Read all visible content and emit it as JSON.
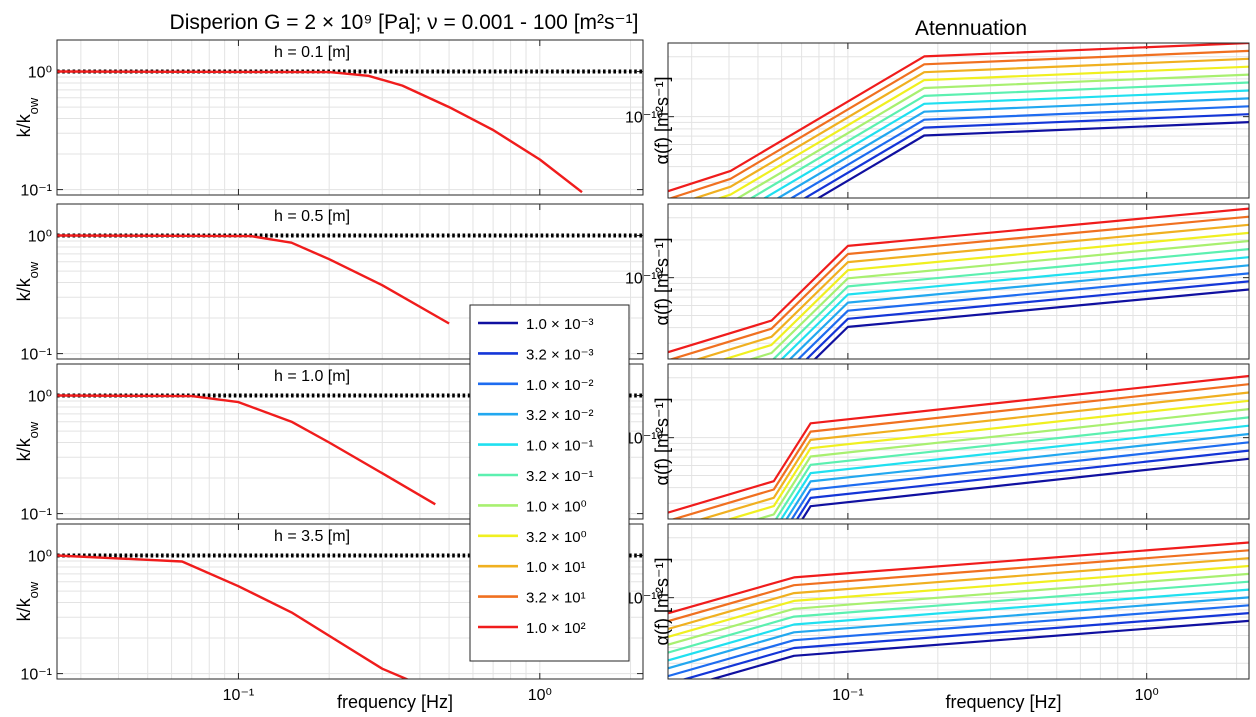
{
  "figure": {
    "left_title": "Disperion G = 2 × 10⁹ [Pa]; ν = 0.001 - 100 [m²s⁻¹]",
    "right_title": "Atennuation"
  },
  "legend": {
    "entries": [
      "1.0 × 10⁻³",
      "3.2 × 10⁻³",
      "1.0 × 10⁻²",
      "3.2 × 10⁻²",
      "1.0 × 10⁻¹",
      "3.2 × 10⁻¹",
      "1.0 × 10⁰",
      "3.2 × 10⁰",
      "1.0 × 10¹",
      "3.2 × 10¹",
      "1.0 × 10²"
    ],
    "colors": [
      "#1010a0",
      "#1436d8",
      "#1e6cf0",
      "#22a8f0",
      "#20e0f0",
      "#5cf0b0",
      "#a8f070",
      "#f0f020",
      "#f0b020",
      "#f07020",
      "#f01c1c"
    ]
  },
  "chart_data": [
    {
      "type": "line",
      "title": "h = 0.1 [m]",
      "ylabel_base": "k/k",
      "ylabel_sub": "ow",
      "xlabel": "",
      "xscale": "log",
      "yscale": "log",
      "xlim": [
        0.025,
        2.2
      ],
      "ylim": [
        0.09,
        1.85
      ],
      "xticks": [
        0.1,
        1
      ],
      "xticklabels": [
        "10⁻¹",
        "10⁰"
      ],
      "yticks": [
        1,
        0.1
      ],
      "yticklabels": [
        "10⁰",
        "10⁻¹"
      ],
      "series": [
        {
          "color": "#000000",
          "dotted": true,
          "x": [
            0.025,
            2.2
          ],
          "y": [
            1.0,
            1.0
          ]
        },
        {
          "color": "#f01c1c",
          "x": [
            0.025,
            0.2,
            0.27,
            0.35,
            0.5,
            0.7,
            1.0,
            1.38
          ],
          "y": [
            1.0,
            0.99,
            0.92,
            0.76,
            0.5,
            0.32,
            0.18,
            0.095
          ]
        }
      ]
    },
    {
      "type": "line",
      "title": "h = 0.5 [m]",
      "ylabel_base": "k/k",
      "ylabel_sub": "ow",
      "xlabel": "",
      "xscale": "log",
      "yscale": "log",
      "xlim": [
        0.025,
        2.2
      ],
      "ylim": [
        0.09,
        1.85
      ],
      "xticks": [
        0.1,
        1
      ],
      "xticklabels": [
        "10⁻¹",
        "10⁰"
      ],
      "yticks": [
        1,
        0.1
      ],
      "yticklabels": [
        "10⁰",
        "10⁻¹"
      ],
      "series": [
        {
          "color": "#000000",
          "dotted": true,
          "x": [
            0.025,
            2.2
          ],
          "y": [
            1.0,
            1.0
          ]
        },
        {
          "color": "#f01c1c",
          "x": [
            0.025,
            0.11,
            0.15,
            0.2,
            0.3,
            0.5
          ],
          "y": [
            1.0,
            0.99,
            0.87,
            0.63,
            0.38,
            0.18
          ]
        }
      ]
    },
    {
      "type": "line",
      "title": "h = 1.0 [m]",
      "ylabel_base": "k/k",
      "ylabel_sub": "ow",
      "xlabel": "",
      "xscale": "log",
      "yscale": "log",
      "xlim": [
        0.025,
        2.2
      ],
      "ylim": [
        0.09,
        1.85
      ],
      "xticks": [
        0.1,
        1
      ],
      "xticklabels": [
        "10⁻¹",
        "10⁰"
      ],
      "yticks": [
        1,
        0.1
      ],
      "yticklabels": [
        "10⁰",
        "10⁻¹"
      ],
      "series": [
        {
          "color": "#000000",
          "dotted": true,
          "x": [
            0.025,
            2.2
          ],
          "y": [
            1.0,
            1.0
          ]
        },
        {
          "color": "#f01c1c",
          "x": [
            0.025,
            0.07,
            0.1,
            0.15,
            0.2,
            0.3,
            0.45
          ],
          "y": [
            1.0,
            0.99,
            0.88,
            0.6,
            0.4,
            0.22,
            0.12
          ]
        }
      ]
    },
    {
      "type": "line",
      "title": "h = 3.5 [m]",
      "ylabel_base": "k/k",
      "ylabel_sub": "ow",
      "xlabel": "frequency [Hz]",
      "xscale": "log",
      "yscale": "log",
      "xlim": [
        0.025,
        2.2
      ],
      "ylim": [
        0.09,
        1.85
      ],
      "xticks": [
        0.1,
        1
      ],
      "xticklabels": [
        "10⁻¹",
        "10⁰"
      ],
      "yticks": [
        1,
        0.1
      ],
      "yticklabels": [
        "10⁰",
        "10⁻¹"
      ],
      "series": [
        {
          "color": "#000000",
          "dotted": true,
          "x": [
            0.025,
            2.2
          ],
          "y": [
            1.0,
            1.0
          ]
        },
        {
          "color": "#f01c1c",
          "x": [
            0.025,
            0.065,
            0.1,
            0.15,
            0.22,
            0.3,
            0.38
          ],
          "y": [
            1.0,
            0.89,
            0.55,
            0.33,
            0.18,
            0.11,
            0.085
          ]
        }
      ]
    },
    {
      "type": "line",
      "title": "",
      "ylabel": "α(f) [m²s⁻¹]",
      "xlabel": "",
      "xscale": "log",
      "yscale": "log",
      "xlim": [
        0.025,
        2.2
      ],
      "ylim": [
        2.25e-11,
        3.86e-10
      ],
      "xticks": [
        0.1,
        1
      ],
      "xticklabels": [
        "10⁻¹",
        "10⁰"
      ],
      "yticks": [
        1e-10
      ],
      "yticklabels": [
        "10⁻¹⁰"
      ],
      "low_x": [
        0.025,
        0.0405
      ],
      "low_y": [
        2.55e-11,
        3.7e-11
      ],
      "high_x": [
        0.18,
        2.2
      ],
      "high_y": [
        3.02e-10,
        3.86e-10
      ],
      "ratio": 0.865
    },
    {
      "type": "line",
      "title": "",
      "ylabel": "α(f) [m²s⁻¹]",
      "xlabel": "",
      "xscale": "log",
      "yscale": "log",
      "xlim": [
        0.025,
        2.2
      ],
      "ylim": [
        2.25e-11,
        3.86e-10
      ],
      "xticks": [
        0.1,
        1
      ],
      "xticklabels": [
        "10⁻¹",
        "10⁰"
      ],
      "yticks": [
        1e-10
      ],
      "yticklabels": [
        "10⁻¹⁰"
      ],
      "low_x": [
        0.025,
        0.0555
      ],
      "low_y": [
        2.55e-11,
        4.55e-11
      ],
      "high_x": [
        0.1,
        2.2
      ],
      "high_y": [
        1.79e-10,
        3.55e-10
      ],
      "ratio": 0.862
    },
    {
      "type": "line",
      "title": "",
      "ylabel": "α(f) [m²s⁻¹]",
      "xlabel": "",
      "xscale": "log",
      "yscale": "log",
      "xlim": [
        0.025,
        2.2
      ],
      "ylim": [
        2.25e-11,
        3.86e-10
      ],
      "xticks": [
        0.1,
        1
      ],
      "xticklabels": [
        "10⁻¹",
        "10⁰"
      ],
      "yticks": [
        1e-10
      ],
      "yticklabels": [
        "10⁻¹⁰"
      ],
      "low_x": [
        0.025,
        0.0565
      ],
      "low_y": [
        2.53e-11,
        4.5e-11
      ],
      "high_x": [
        0.075,
        2.2
      ],
      "high_y": [
        1.3e-10,
        3.1e-10
      ],
      "ratio": 0.859
    },
    {
      "type": "line",
      "title": "",
      "ylabel": "α(f) [m²s⁻¹]",
      "xlabel": "frequency [Hz]",
      "xscale": "log",
      "yscale": "log",
      "xlim": [
        0.025,
        2.2
      ],
      "ylim": [
        2.25e-11,
        3.86e-10
      ],
      "xticks": [
        0.1,
        1
      ],
      "xticklabels": [
        "10⁻¹",
        "10⁰"
      ],
      "yticks": [
        1e-10
      ],
      "yticklabels": [
        "10⁻¹⁰"
      ],
      "low_x": [
        0.025,
        0.066
      ],
      "low_y": [
        7.5e-11,
        1.45e-10
      ],
      "high_x": [
        0.066,
        2.2
      ],
      "high_y": [
        1.45e-10,
        2.75e-10
      ],
      "ratio": 0.866
    }
  ]
}
